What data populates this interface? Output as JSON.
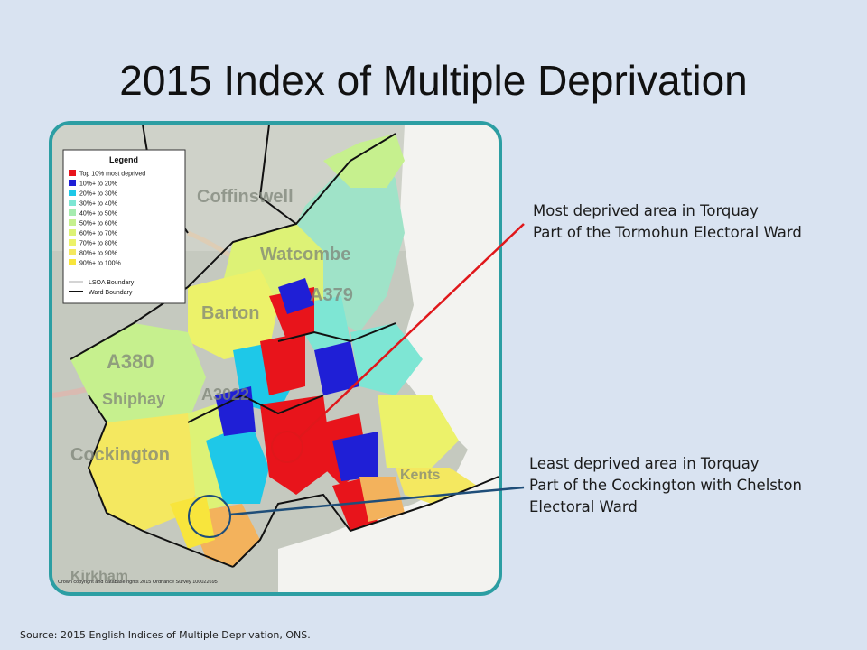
{
  "slide": {
    "title": "2015 Index of Multiple Deprivation",
    "source": "Source: 2015 English Indices of Multiple Deprivation, ONS."
  },
  "annotations": {
    "most_deprived": {
      "line1": "Most deprived area in Torquay",
      "line2": "Part of the Tormohun Electoral Ward",
      "color": "#e0171b"
    },
    "least_deprived": {
      "line1": "Least deprived area in Torquay",
      "line2": "Part of the Cockington with Chelston",
      "line3": "Electoral Ward",
      "color": "#1f4e79"
    }
  },
  "map": {
    "legend": {
      "title": "Legend",
      "items": [
        {
          "label": "Top 10% most deprived",
          "color": "#e8141b"
        },
        {
          "label": "10%+ to  20%",
          "color": "#1f1fd6"
        },
        {
          "label": "20%+ to  30%",
          "color": "#1ec8e8"
        },
        {
          "label": "30%+ to  40%",
          "color": "#7ee6d4"
        },
        {
          "label": "40%+ to  50%",
          "color": "#a6ecb0"
        },
        {
          "label": "50%+ to  60%",
          "color": "#c6f08e"
        },
        {
          "label": "60%+ to  70%",
          "color": "#ddf276"
        },
        {
          "label": "70%+ to  80%",
          "color": "#ecf26a"
        },
        {
          "label": "80%+ to  90%",
          "color": "#f4e860"
        },
        {
          "label": "90%+ to 100%",
          "color": "#f8e53c"
        }
      ],
      "boundaries": [
        {
          "label": "LSOA Boundary",
          "style": "thin-grey"
        },
        {
          "label": "Ward Boundary",
          "style": "thick-black"
        }
      ]
    },
    "place_labels": [
      "Coffinswell",
      "Barton",
      "Watcombe",
      "A379",
      "A380",
      "Shiphay",
      "A3022",
      "Cockington",
      "Kents",
      "Kirkham"
    ],
    "copyright": "Crown copyright and database rights 2015 Ordnance Survey 100022695"
  }
}
